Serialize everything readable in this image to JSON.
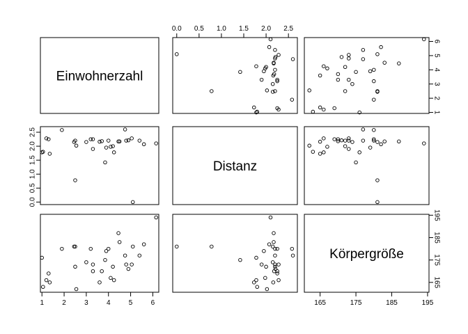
{
  "chart_data": {
    "type": "scatter",
    "variables": [
      {
        "name": "Einwohnerzahl",
        "ticks": [
          1,
          2,
          3,
          4,
          5,
          6
        ],
        "tick_labels": [
          "1",
          "2",
          "3",
          "4",
          "5",
          "6"
        ],
        "range": [
          0.93,
          6.27
        ]
      },
      {
        "name": "Distanz",
        "ticks": [
          0.0,
          0.5,
          1.0,
          1.5,
          2.0,
          2.5
        ],
        "tick_labels": [
          "0.0",
          "0.5",
          "1.0",
          "1.5",
          "2.0",
          "2.5"
        ],
        "range": [
          -0.09,
          2.7
        ]
      },
      {
        "name": "Körpergröße",
        "ticks": [
          165,
          175,
          185,
          195
        ],
        "tick_labels": [
          "165",
          "175",
          "185",
          "195"
        ],
        "range": [
          160.6,
          195.4
        ]
      }
    ],
    "points": [
      [
        5.1,
        0.0,
        181
      ],
      [
        2.5,
        0.78,
        181
      ],
      [
        3.85,
        1.42,
        175
      ],
      [
        1.35,
        1.73,
        165
      ],
      [
        4.25,
        1.78,
        166
      ],
      [
        1.05,
        1.8,
        163
      ],
      [
        2.55,
        2.02,
        162
      ],
      [
        3.3,
        1.9,
        173
      ],
      [
        4.1,
        1.98,
        167
      ],
      [
        5.6,
        2.07,
        182
      ],
      [
        3.0,
        2.15,
        174
      ],
      [
        4.0,
        2.2,
        180
      ],
      [
        4.8,
        2.2,
        173
      ],
      [
        1.9,
        2.58,
        180
      ],
      [
        5.05,
        2.28,
        173
      ],
      [
        3.7,
        2.18,
        170
      ],
      [
        5.4,
        2.2,
        177
      ],
      [
        2.45,
        2.15,
        181
      ],
      [
        1.2,
        2.28,
        166
      ],
      [
        4.45,
        2.17,
        187
      ],
      [
        6.15,
        2.1,
        194
      ],
      [
        4.75,
        2.6,
        177
      ],
      [
        3.2,
        2.25,
        180
      ],
      [
        1.0,
        1.78,
        176
      ],
      [
        3.9,
        1.95,
        179
      ],
      [
        1.3,
        2.25,
        169
      ],
      [
        4.5,
        2.17,
        183
      ],
      [
        3.3,
        2.25,
        170
      ],
      [
        2.5,
        2.2,
        172
      ],
      [
        4.2,
        2.0,
        172
      ],
      [
        4.9,
        2.21,
        171
      ],
      [
        3.6,
        2.16,
        165
      ]
    ]
  }
}
